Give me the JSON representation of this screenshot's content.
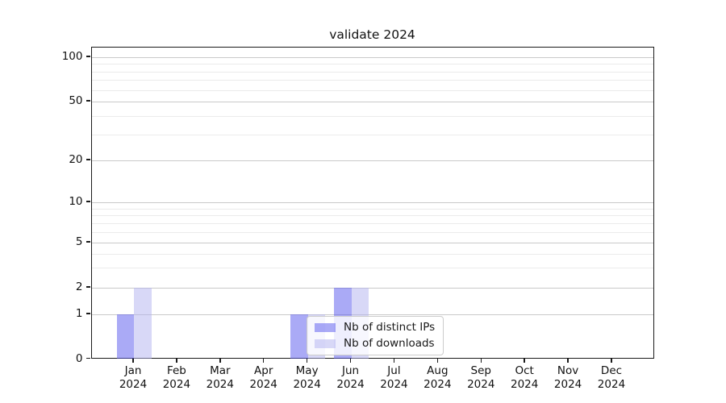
{
  "chart_data": {
    "type": "bar",
    "title": "validate 2024",
    "categories": [
      "Jan",
      "Feb",
      "Mar",
      "Apr",
      "May",
      "Jun",
      "Jul",
      "Aug",
      "Sep",
      "Oct",
      "Nov",
      "Dec"
    ],
    "year_label": "2024",
    "series": [
      {
        "key": "distinct-ips",
        "name": "Nb of distinct IPs",
        "color": "rgba(86,86,238,0.5)",
        "values": [
          1,
          0,
          0,
          0,
          1,
          2,
          0,
          0,
          0,
          0,
          0,
          0
        ]
      },
      {
        "key": "downloads",
        "name": "Nb of downloads",
        "color": "rgba(178,178,240,0.5)",
        "values": [
          2,
          0,
          0,
          0,
          1,
          2,
          0,
          0,
          0,
          0,
          0,
          0
        ]
      }
    ],
    "xlabel": "",
    "ylabel": "",
    "y_axis": {
      "scale": "symlog",
      "major_ticks": [
        0,
        1,
        2,
        5,
        10,
        20,
        50,
        100
      ],
      "minor_ticks": [
        3,
        4,
        6,
        7,
        8,
        9,
        30,
        40,
        60,
        70,
        80,
        90
      ],
      "ylim": [
        0,
        115
      ]
    },
    "grid": "horizontal",
    "legend": {
      "position": "lower-center",
      "entries": [
        "Nb of distinct IPs",
        "Nb of downloads"
      ]
    }
  }
}
